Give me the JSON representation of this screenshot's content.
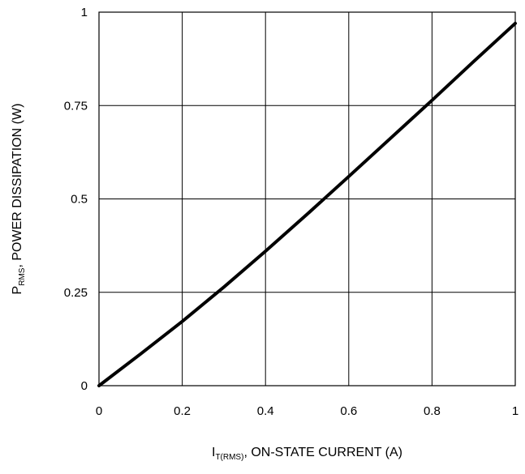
{
  "chart_data": {
    "type": "line",
    "xlabel_main": "I",
    "xlabel_sub": "T(RMS)",
    "xlabel_rest": ", ON-STATE CURRENT (A)",
    "ylabel_main": "P",
    "ylabel_sub": "RMS",
    "ylabel_rest": ", POWER DISSIPATION (W)",
    "xlim": [
      0,
      1
    ],
    "ylim": [
      0,
      1
    ],
    "x_ticks": [
      0,
      0.2,
      0.4,
      0.6,
      0.8,
      1
    ],
    "x_tick_labels": [
      "0",
      "0.2",
      "0.4",
      "0.6",
      "0.8",
      "1"
    ],
    "y_ticks": [
      0,
      0.25,
      0.5,
      0.75,
      1
    ],
    "y_tick_labels": [
      "0",
      "0.25",
      "0.5",
      "0.75",
      "1"
    ],
    "grid": true,
    "line_color": "#000000",
    "series": [
      {
        "x": [
          0,
          0.1,
          0.2,
          0.3,
          0.4,
          0.5,
          0.6,
          0.7,
          0.8,
          0.9,
          1.0
        ],
        "y": [
          0,
          0.085,
          0.172,
          0.264,
          0.36,
          0.459,
          0.56,
          0.662,
          0.764,
          0.868,
          0.97
        ]
      }
    ]
  }
}
